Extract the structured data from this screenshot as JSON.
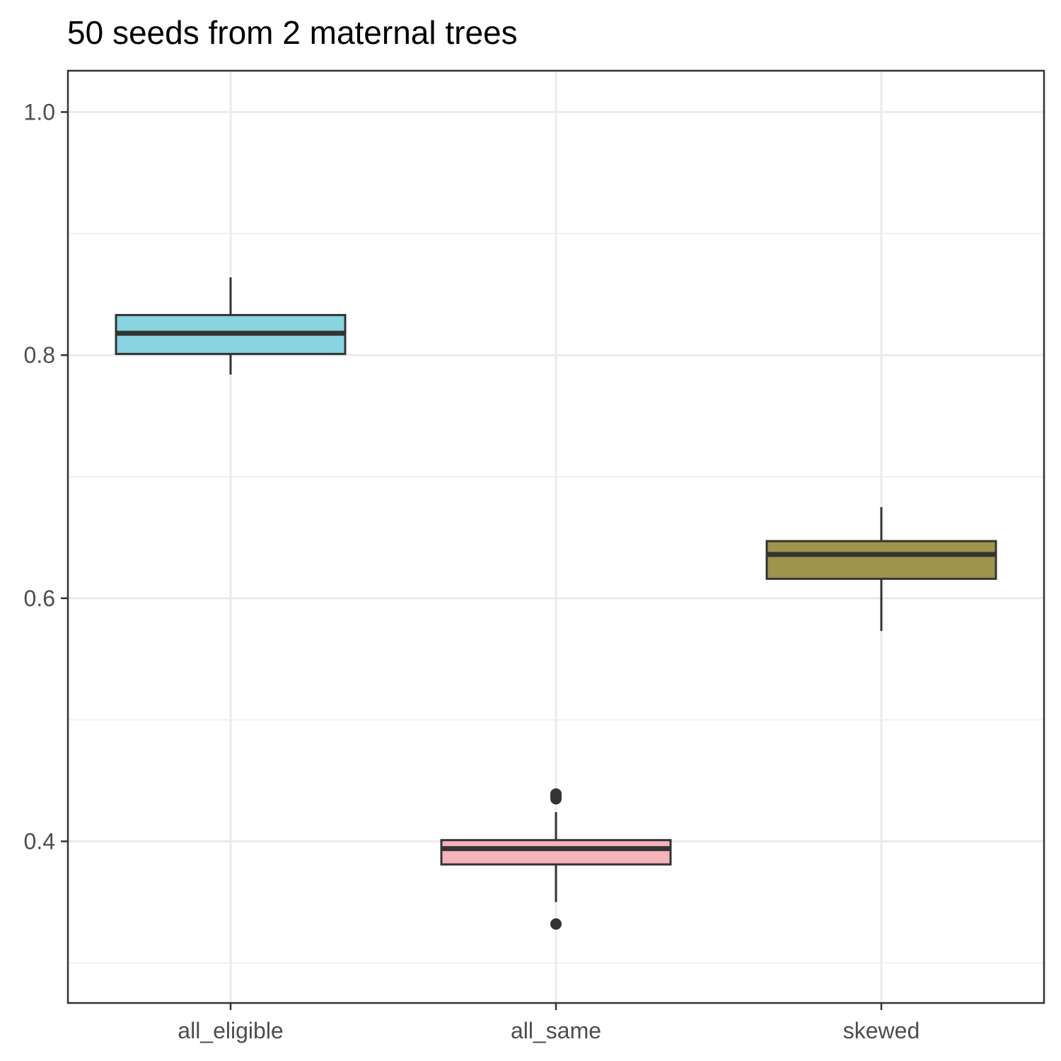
{
  "chart_data": {
    "type": "box",
    "title": "50 seeds from 2 maternal trees",
    "xlabel": "",
    "ylabel": "",
    "categories": [
      "all_eligible",
      "all_same",
      "skewed"
    ],
    "ylim": [
      0.267,
      1.034
    ],
    "yticks": [
      0.4,
      0.6,
      0.8,
      1.0
    ],
    "ytick_labels": [
      "0.4",
      "0.6",
      "0.8",
      "1.0"
    ],
    "grid": true,
    "legend": "none",
    "boxes": [
      {
        "category": "all_eligible",
        "fill": "#88d4e1",
        "whisker_low": 0.784,
        "q1": 0.801,
        "median": 0.818,
        "q3": 0.833,
        "whisker_high": 0.864,
        "outliers": []
      },
      {
        "category": "all_same",
        "fill": "#f5b3ba",
        "whisker_low": 0.35,
        "q1": 0.381,
        "median": 0.394,
        "q3": 0.401,
        "whisker_high": 0.424,
        "outliers": [
          0.332,
          0.435,
          0.437,
          0.439
        ]
      },
      {
        "category": "skewed",
        "fill": "#9d954a",
        "whisker_low": 0.573,
        "q1": 0.616,
        "median": 0.636,
        "q3": 0.647,
        "whisker_high": 0.675,
        "outliers": []
      }
    ],
    "colors": {
      "box_stroke": "#333333",
      "panel_border": "#333333",
      "grid_major": "#ebebeb",
      "grid_minor": "#f0f0f0"
    }
  }
}
